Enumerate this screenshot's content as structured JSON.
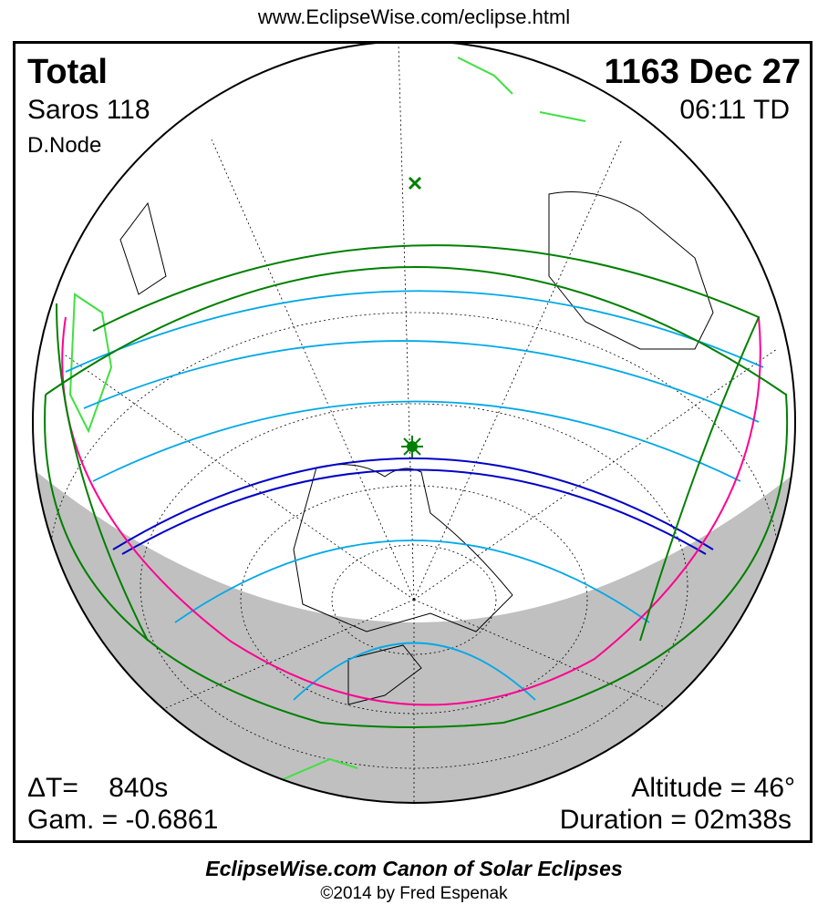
{
  "url": "www.EclipseWise.com/eclipse.html",
  "eclipse": {
    "type": "Total",
    "date": "1163 Dec 27",
    "saros": "Saros 118",
    "time": "06:11 TD",
    "node": "D.Node",
    "delta_t": "ΔT=    840s",
    "gamma": "Gam. = -0.6861",
    "altitude": "Altitude = 46°",
    "duration": "Duration = 02m38s"
  },
  "footer": {
    "title": "EclipseWise.com Canon of Solar Eclipses",
    "copyright": "©2014 by Fred Espenak"
  },
  "colors": {
    "penumbra_limits": "#008000",
    "partial_magnitude": "#00a8e8",
    "central_path": "#0000c8",
    "rise_set": "#ff0090",
    "night": "#c0c0c0",
    "land_lit": "#40e040"
  }
}
